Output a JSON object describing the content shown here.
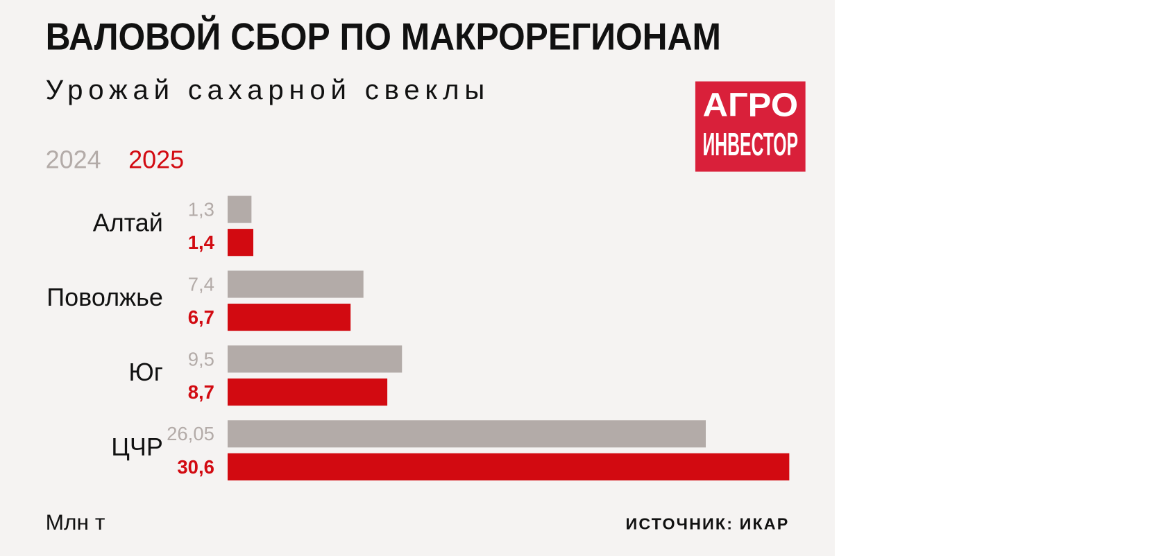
{
  "chart_data": {
    "type": "hbar-grouped",
    "title": "ВАЛОВОЙ СБОР ПО МАКРОРЕГИОНАМ",
    "subtitle": "Урожай сахарной свеклы",
    "unit": "Млн т",
    "source": "ИСТОЧНИК: ИКАР",
    "brand": {
      "top": "АГРО",
      "bottom": "ИНВЕСТОР"
    },
    "categories": [
      "Алтай",
      "Поволжье",
      "Юг",
      "ЦЧР"
    ],
    "series": [
      {
        "name": "2024",
        "color": "#b3aba8",
        "values": [
          1.3,
          7.4,
          9.5,
          26.05
        ],
        "value_labels": [
          "1,3",
          "7,4",
          "9,5",
          "26,05"
        ]
      },
      {
        "name": "2025",
        "color": "#d20a11",
        "values": [
          1.4,
          6.7,
          8.7,
          30.6
        ],
        "value_labels": [
          "1,4",
          "6,7",
          "8,7",
          "30,6"
        ]
      }
    ]
  }
}
